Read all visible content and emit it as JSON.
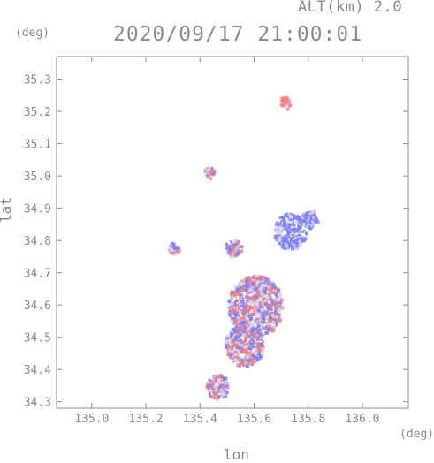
{
  "header": {
    "altitude": "ALT(km) 2.0",
    "timestamp": "2020/09/17 21:00:01"
  },
  "axes": {
    "y_unit": "(deg)",
    "x_unit": "(deg)",
    "y_title": "lat",
    "x_title": "lon"
  },
  "chart_data": {
    "type": "heatmap",
    "xlabel": "lon",
    "ylabel": "lat",
    "xlim": [
      134.87,
      136.17
    ],
    "ylim": [
      34.28,
      35.37
    ],
    "x_ticks": [
      "135.0",
      "135.2",
      "135.4",
      "135.6",
      "135.8",
      "136.0"
    ],
    "x_tick_values": [
      135.0,
      135.2,
      135.4,
      135.6,
      135.8,
      136.0
    ],
    "y_ticks": [
      "34.3",
      "34.4",
      "34.5",
      "34.6",
      "34.7",
      "34.8",
      "34.9",
      "35.0",
      "35.1",
      "35.2",
      "35.3"
    ],
    "y_tick_values": [
      34.3,
      34.4,
      34.5,
      34.6,
      34.7,
      34.8,
      34.9,
      35.0,
      35.1,
      35.2,
      35.3
    ],
    "colors": {
      "positive": "#f08080",
      "negative": "#8080f0",
      "neutral": "#d8d8f0",
      "frame": "#8a8a8a"
    },
    "echo_clusters": [
      {
        "lon": 135.71,
        "lat": 35.23,
        "r": 0.02,
        "tone": "positive"
      },
      {
        "lon": 135.43,
        "lat": 35.01,
        "r": 0.02,
        "tone": "mixed"
      },
      {
        "lon": 135.6,
        "lat": 34.6,
        "r": 0.1,
        "tone": "mixed"
      },
      {
        "lon": 135.56,
        "lat": 34.48,
        "r": 0.07,
        "tone": "mixed"
      },
      {
        "lon": 135.73,
        "lat": 34.83,
        "r": 0.06,
        "tone": "negative"
      },
      {
        "lon": 135.8,
        "lat": 34.87,
        "r": 0.03,
        "tone": "negative"
      },
      {
        "lon": 135.3,
        "lat": 34.78,
        "r": 0.02,
        "tone": "mixed"
      },
      {
        "lon": 135.46,
        "lat": 34.35,
        "r": 0.04,
        "tone": "mixed"
      },
      {
        "lon": 135.52,
        "lat": 34.78,
        "r": 0.03,
        "tone": "mixed"
      }
    ]
  }
}
